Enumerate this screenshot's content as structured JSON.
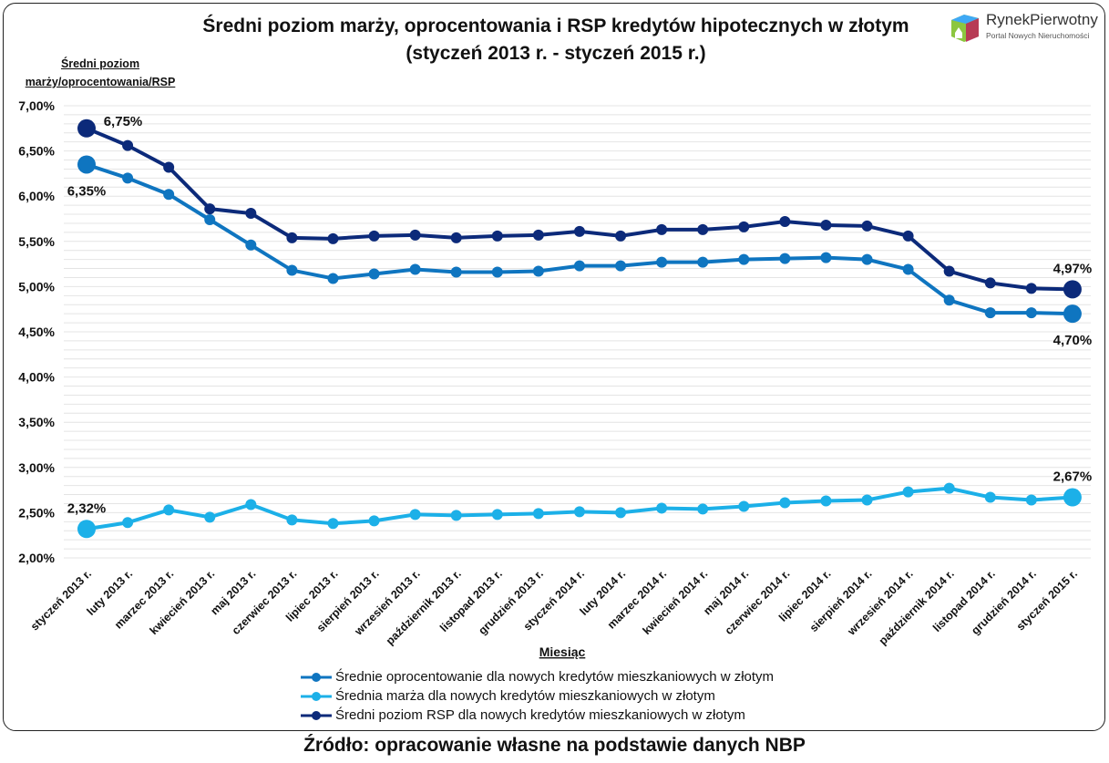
{
  "chart_data": {
    "type": "line",
    "title": "Średni poziom marży, oprocentowania i RSP kredytów hipotecznych w złotym (styczeń 2013 r. - styczeń 2015 r.)",
    "title_lines": [
      "Średni poziom marży, oprocentowania i RSP kredytów hipotecznych w złotym",
      "(styczeń 2013 r. - styczeń 2015 r.)"
    ],
    "ylabel_lines": [
      "Średni poziom",
      "marży/oprocentowania/RSP"
    ],
    "xlabel": "Miesiąc",
    "ylim": [
      2.0,
      7.0
    ],
    "y_ticks": [
      "2,00%",
      "2,50%",
      "3,00%",
      "3,50%",
      "4,00%",
      "4,50%",
      "5,00%",
      "5,50%",
      "6,00%",
      "6,50%",
      "7,00%"
    ],
    "grid": true,
    "legend_position": "bottom",
    "categories": [
      "styczeń 2013 r.",
      "luty 2013 r.",
      "marzec 2013 r.",
      "kwiecień 2013 r.",
      "maj 2013 r.",
      "czerwiec 2013 r.",
      "lipiec 2013 r.",
      "sierpień 2013 r.",
      "wrzesień 2013 r.",
      "październik 2013 r.",
      "listopad 2013 r.",
      "grudzień 2013 r.",
      "styczeń 2014 r.",
      "luty 2014 r.",
      "marzec 2014 r.",
      "kwiecień 2014 r.",
      "maj 2014 r.",
      "czerwiec 2014 r.",
      "lipiec 2014 r.",
      "sierpień 2014 r.",
      "wrzesień 2014 r.",
      "październik 2014 r.",
      "listopad 2014 r.",
      "grudzień 2014 r.",
      "styczeń 2015 r."
    ],
    "series": [
      {
        "name": "Średnie oprocentowanie dla nowych kredytów mieszkaniowych w złotym",
        "color": "#0f75c0",
        "values": [
          6.35,
          6.2,
          6.02,
          5.74,
          5.46,
          5.18,
          5.09,
          5.14,
          5.19,
          5.16,
          5.16,
          5.17,
          5.23,
          5.23,
          5.27,
          5.27,
          5.3,
          5.31,
          5.32,
          5.3,
          5.19,
          4.85,
          4.71,
          4.71,
          4.7
        ],
        "labels": {
          "first": "6,35%",
          "last": "4,70%"
        }
      },
      {
        "name": "Średnia marża dla nowych kredytów mieszkaniowych w złotym",
        "color": "#1cb0e8",
        "values": [
          2.32,
          2.39,
          2.53,
          2.45,
          2.59,
          2.42,
          2.38,
          2.41,
          2.48,
          2.47,
          2.48,
          2.49,
          2.51,
          2.5,
          2.55,
          2.54,
          2.57,
          2.61,
          2.63,
          2.64,
          2.73,
          2.77,
          2.67,
          2.64,
          2.67
        ],
        "labels": {
          "first": "2,32%",
          "last": "2,67%"
        }
      },
      {
        "name": "Średni poziom RSP dla nowych kredytów mieszkaniowych w złotym",
        "color": "#0c2a7a",
        "values": [
          6.75,
          6.56,
          6.32,
          5.86,
          5.81,
          5.54,
          5.53,
          5.56,
          5.57,
          5.54,
          5.56,
          5.57,
          5.61,
          5.56,
          5.63,
          5.63,
          5.66,
          5.72,
          5.68,
          5.67,
          5.56,
          5.17,
          5.04,
          4.98,
          4.97
        ],
        "labels": {
          "first": "6,75%",
          "last": "4,97%"
        }
      }
    ]
  },
  "logo": {
    "brand": "RynekPierwotny",
    "sub": "Portal Nowych Nieruchomości"
  },
  "source": "Źródło: opracowanie własne na podstawie danych NBP"
}
